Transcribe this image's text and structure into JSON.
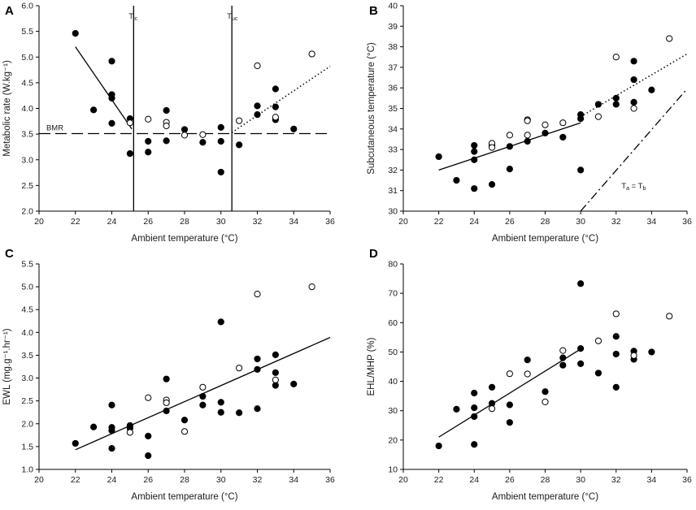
{
  "chart_data": [
    {
      "type": "scatter",
      "panel": "A",
      "xlabel": "Ambient temperature (°C)",
      "ylabel": "Metabolic rate (W.kg⁻¹)",
      "xlim": [
        20,
        36
      ],
      "ylim": [
        2.0,
        6.0
      ],
      "xticks": [
        20,
        22,
        24,
        26,
        28,
        30,
        32,
        34,
        36
      ],
      "yticks": [
        2.0,
        2.5,
        3.0,
        3.5,
        4.0,
        4.5,
        5.0,
        5.5,
        6.0
      ],
      "ytick_decimals": 1,
      "series": [
        {
          "name": "filled",
          "style": "filled",
          "points": [
            [
              22,
              5.46
            ],
            [
              23,
              3.97
            ],
            [
              24,
              4.92
            ],
            [
              24,
              4.27
            ],
            [
              24,
              4.2
            ],
            [
              24,
              3.71
            ],
            [
              25,
              3.8
            ],
            [
              25,
              3.12
            ],
            [
              26,
              3.36
            ],
            [
              26,
              3.15
            ],
            [
              27,
              3.96
            ],
            [
              27,
              3.37
            ],
            [
              28,
              3.59
            ],
            [
              29,
              3.34
            ],
            [
              30,
              3.36
            ],
            [
              30,
              3.63
            ],
            [
              30,
              2.76
            ],
            [
              31,
              3.29
            ],
            [
              32,
              4.05
            ],
            [
              32,
              3.88
            ],
            [
              33,
              4.38
            ],
            [
              33,
              4.03
            ],
            [
              33,
              3.78
            ],
            [
              34,
              3.6
            ]
          ]
        },
        {
          "name": "open",
          "style": "open",
          "points": [
            [
              25,
              3.72
            ],
            [
              26,
              3.79
            ],
            [
              27,
              3.73
            ],
            [
              27,
              3.66
            ],
            [
              28,
              3.48
            ],
            [
              29,
              3.49
            ],
            [
              31,
              3.76
            ],
            [
              32,
              4.83
            ],
            [
              33,
              3.83
            ],
            [
              35,
              5.06
            ]
          ]
        }
      ],
      "lines": [
        {
          "style": "solid",
          "points": [
            [
              22,
              5.2
            ],
            [
              25.1,
              3.6
            ]
          ]
        },
        {
          "style": "dotted",
          "points": [
            [
              30.6,
              3.53
            ],
            [
              36,
              4.82
            ]
          ]
        },
        {
          "style": "dashed",
          "points": [
            [
              20,
              3.51
            ],
            [
              36,
              3.51
            ]
          ]
        },
        {
          "style": "solid",
          "points": [
            [
              25.2,
              2.0
            ],
            [
              25.2,
              6.0
            ]
          ]
        },
        {
          "style": "solid",
          "points": [
            [
              30.6,
              2.0
            ],
            [
              30.6,
              6.0
            ]
          ]
        }
      ],
      "annotations": [
        {
          "text": "BMR",
          "x": 20.4,
          "y": 3.51
        },
        {
          "text": "T",
          "sub": "lc",
          "x": 25.2,
          "y": 6.0
        },
        {
          "text": "T",
          "sub": "uc",
          "x": 30.6,
          "y": 6.0
        }
      ]
    },
    {
      "type": "scatter",
      "panel": "B",
      "xlabel": "Ambient temperature (°C)",
      "ylabel": "Subcutaneous temperature (°C)",
      "xlim": [
        20,
        36
      ],
      "ylim": [
        30,
        40
      ],
      "xticks": [
        20,
        22,
        24,
        26,
        28,
        30,
        32,
        34,
        36
      ],
      "yticks": [
        30,
        31,
        32,
        33,
        34,
        35,
        36,
        37,
        38,
        39,
        40
      ],
      "ytick_decimals": 0,
      "series": [
        {
          "name": "filled",
          "style": "filled",
          "points": [
            [
              22,
              32.65
            ],
            [
              23,
              31.5
            ],
            [
              24,
              33.2
            ],
            [
              24,
              32.9
            ],
            [
              24,
              32.5
            ],
            [
              24,
              31.1
            ],
            [
              25,
              33.2
            ],
            [
              25,
              31.3
            ],
            [
              26,
              33.15
            ],
            [
              26,
              32.05
            ],
            [
              27,
              33.4
            ],
            [
              28,
              33.8
            ],
            [
              29,
              33.6
            ],
            [
              30,
              34.7
            ],
            [
              30,
              34.5
            ],
            [
              30,
              32.0
            ],
            [
              31,
              35.2
            ],
            [
              32,
              35.5
            ],
            [
              32,
              35.2
            ],
            [
              33,
              37.3
            ],
            [
              33,
              36.4
            ],
            [
              33,
              35.3
            ],
            [
              34,
              35.9
            ]
          ]
        },
        {
          "name": "open",
          "style": "open",
          "points": [
            [
              25,
              33.3
            ],
            [
              25,
              33.1
            ],
            [
              26,
              33.7
            ],
            [
              27,
              34.45
            ],
            [
              27,
              34.4
            ],
            [
              27,
              33.7
            ],
            [
              28,
              34.2
            ],
            [
              29,
              34.3
            ],
            [
              31,
              34.6
            ],
            [
              32,
              37.5
            ],
            [
              33,
              35.0
            ],
            [
              35,
              38.4
            ]
          ]
        }
      ],
      "lines": [
        {
          "style": "solid",
          "points": [
            [
              22,
              32.0
            ],
            [
              30,
              34.3
            ]
          ]
        },
        {
          "style": "dotted",
          "points": [
            [
              30,
              34.6
            ],
            [
              36,
              37.65
            ]
          ]
        },
        {
          "style": "dashdot",
          "points": [
            [
              30,
              30.0
            ],
            [
              36,
              35.95
            ]
          ]
        }
      ],
      "annotations": [
        {
          "text": "T",
          "sub": "a",
          "text2": " = T",
          "sub2": "b",
          "x": 32.3,
          "y": 31.1
        }
      ]
    },
    {
      "type": "scatter",
      "panel": "C",
      "xlabel": "Ambient temperature (°C)",
      "ylabel": "EWL (mg.g⁻¹.hr⁻¹)",
      "xlim": [
        20,
        36
      ],
      "ylim": [
        1.0,
        5.5
      ],
      "xticks": [
        20,
        22,
        24,
        26,
        28,
        30,
        32,
        34,
        36
      ],
      "yticks": [
        1.0,
        1.5,
        2.0,
        2.5,
        3.0,
        3.5,
        4.0,
        4.5,
        5.0,
        5.5
      ],
      "ytick_decimals": 1,
      "series": [
        {
          "name": "filled",
          "style": "filled",
          "points": [
            [
              22,
              1.57
            ],
            [
              23,
              1.93
            ],
            [
              24,
              2.41
            ],
            [
              24,
              1.92
            ],
            [
              24,
              1.85
            ],
            [
              24,
              1.46
            ],
            [
              25,
              1.96
            ],
            [
              25,
              1.9
            ],
            [
              26,
              1.73
            ],
            [
              26,
              1.3
            ],
            [
              27,
              2.98
            ],
            [
              27,
              2.28
            ],
            [
              28,
              2.08
            ],
            [
              29,
              2.6
            ],
            [
              29,
              2.41
            ],
            [
              30,
              4.23
            ],
            [
              30,
              2.47
            ],
            [
              30,
              2.25
            ],
            [
              31,
              2.24
            ],
            [
              32,
              3.42
            ],
            [
              32,
              3.19
            ],
            [
              32,
              2.33
            ],
            [
              33,
              3.51
            ],
            [
              33,
              3.12
            ],
            [
              33,
              2.84
            ],
            [
              34,
              2.87
            ]
          ]
        },
        {
          "name": "open",
          "style": "open",
          "points": [
            [
              25,
              1.81
            ],
            [
              26,
              2.57
            ],
            [
              27,
              2.52
            ],
            [
              27,
              2.46
            ],
            [
              28,
              1.83
            ],
            [
              29,
              2.8
            ],
            [
              31,
              3.22
            ],
            [
              32,
              4.84
            ],
            [
              33,
              2.96
            ],
            [
              35,
              5.0
            ]
          ]
        }
      ],
      "lines": [
        {
          "style": "solid",
          "points": [
            [
              22,
              1.43
            ],
            [
              36,
              3.89
            ]
          ]
        }
      ],
      "annotations": []
    },
    {
      "type": "scatter",
      "panel": "D",
      "xlabel": "Ambient temperature (°C)",
      "ylabel": "EHL/MHP (%)",
      "xlim": [
        20,
        36
      ],
      "ylim": [
        10,
        80
      ],
      "xticks": [
        20,
        22,
        24,
        26,
        28,
        30,
        32,
        34,
        36
      ],
      "yticks": [
        10,
        20,
        30,
        40,
        50,
        60,
        70,
        80
      ],
      "ytick_decimals": 0,
      "series": [
        {
          "name": "filled",
          "style": "filled",
          "points": [
            [
              22,
              18
            ],
            [
              23,
              30.5
            ],
            [
              24,
              36
            ],
            [
              24,
              31
            ],
            [
              24,
              28
            ],
            [
              24,
              18.5
            ],
            [
              25,
              38
            ],
            [
              25,
              32.5
            ],
            [
              26,
              32
            ],
            [
              26,
              26
            ],
            [
              27,
              47.3
            ],
            [
              28,
              36.5
            ],
            [
              29,
              45.5
            ],
            [
              29,
              48
            ],
            [
              30,
              73.3
            ],
            [
              30,
              51.2
            ],
            [
              30,
              46
            ],
            [
              31,
              42.8
            ],
            [
              32,
              55.3
            ],
            [
              32,
              49.3
            ],
            [
              32,
              38
            ],
            [
              33,
              50.3
            ],
            [
              33,
              47.5
            ],
            [
              34,
              50
            ]
          ]
        },
        {
          "name": "open",
          "style": "open",
          "points": [
            [
              25,
              30.7
            ],
            [
              26,
              42.6
            ],
            [
              27,
              42.5
            ],
            [
              28,
              33
            ],
            [
              29,
              50.5
            ],
            [
              31,
              53.8
            ],
            [
              32,
              63
            ],
            [
              33,
              48.8
            ],
            [
              35,
              62.2
            ]
          ]
        }
      ],
      "lines": [
        {
          "style": "solid",
          "points": [
            [
              22,
              21
            ],
            [
              30,
              51
            ]
          ]
        }
      ],
      "annotations": []
    }
  ]
}
